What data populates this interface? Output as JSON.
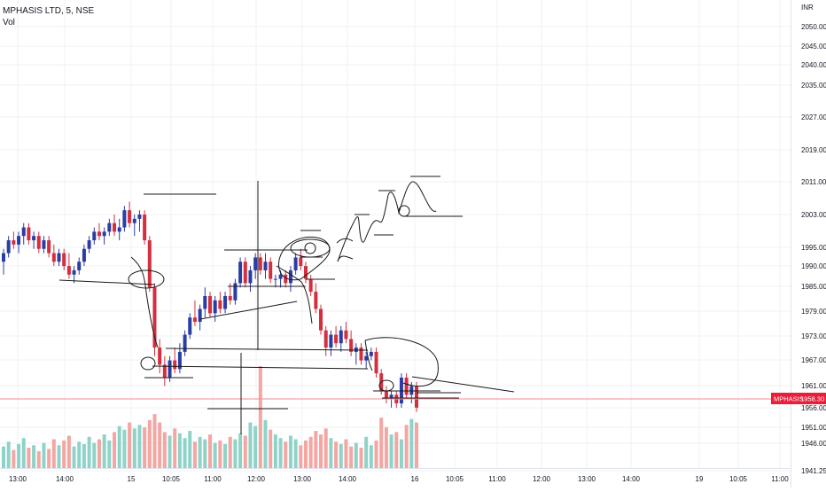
{
  "legend": {
    "symbol": "MPHASIS LTD, 5, NSE",
    "volume_label": "Vol"
  },
  "price_badge": {
    "symbol": "MPHASIS",
    "price": "1958.30"
  },
  "colors": {
    "up": "#2a3da5",
    "down": "#d32f3f",
    "vol_up": "#8fd3c8",
    "vol_down": "#f4a6a3",
    "price_line": "#f28b94",
    "badge": "#e91e3a",
    "grid": "#eef0f3",
    "drawing": "#1a1a1a"
  },
  "chart_data": {
    "type": "candlestick",
    "symbol": "MPHASIS LTD",
    "interval": "5",
    "exchange": "NSE",
    "currency": "INR",
    "last_price": 1958.3,
    "y_axis": {
      "unit": "INR",
      "ticks": [
        "2050.00",
        "2045.00",
        "2040.00",
        "2035.00",
        "2027.00",
        "2019.00",
        "2011.00",
        "2003.00",
        "1995.00",
        "1990.00",
        "1985.00",
        "1979.00",
        "1973.00",
        "1967.00",
        "1961.00",
        "1956.00",
        "1951.00",
        "1946.00",
        "1941.25"
      ]
    },
    "x_axis": {
      "ticks": [
        "13:00",
        "14:00",
        "15",
        "10:05",
        "11:00",
        "12:00",
        "13:00",
        "14:00",
        "16",
        "10:05",
        "11:00",
        "12:00",
        "13:00",
        "14:00",
        "19",
        "10:05",
        "11:00"
      ]
    },
    "candles": [
      {
        "o": 1992,
        "h": 1995,
        "l": 1989,
        "c": 1994
      },
      {
        "o": 1994,
        "h": 1998,
        "l": 1993,
        "c": 1997
      },
      {
        "o": 1997,
        "h": 1999,
        "l": 1995,
        "c": 1996
      },
      {
        "o": 1996,
        "h": 1999,
        "l": 1994,
        "c": 1998
      },
      {
        "o": 1998,
        "h": 2001,
        "l": 1996,
        "c": 2000
      },
      {
        "o": 2000,
        "h": 2001,
        "l": 1996,
        "c": 1997
      },
      {
        "o": 1997,
        "h": 1999,
        "l": 1995,
        "c": 1998
      },
      {
        "o": 1998,
        "h": 1999,
        "l": 1994,
        "c": 1995
      },
      {
        "o": 1995,
        "h": 1998,
        "l": 1994,
        "c": 1997
      },
      {
        "o": 1997,
        "h": 1998,
        "l": 1993,
        "c": 1994
      },
      {
        "o": 1994,
        "h": 1996,
        "l": 1991,
        "c": 1992
      },
      {
        "o": 1992,
        "h": 1995,
        "l": 1991,
        "c": 1994
      },
      {
        "o": 1994,
        "h": 1995,
        "l": 1990,
        "c": 1991
      },
      {
        "o": 1991,
        "h": 1994,
        "l": 1988,
        "c": 1989
      },
      {
        "o": 1989,
        "h": 1991,
        "l": 1987,
        "c": 1990
      },
      {
        "o": 1990,
        "h": 1993,
        "l": 1989,
        "c": 1992
      },
      {
        "o": 1992,
        "h": 1996,
        "l": 1991,
        "c": 1995
      },
      {
        "o": 1995,
        "h": 1998,
        "l": 1994,
        "c": 1997
      },
      {
        "o": 1997,
        "h": 2000,
        "l": 1996,
        "c": 1999
      },
      {
        "o": 1999,
        "h": 2001,
        "l": 1997,
        "c": 1998
      },
      {
        "o": 1998,
        "h": 2000,
        "l": 1996,
        "c": 1999
      },
      {
        "o": 1999,
        "h": 2002,
        "l": 1998,
        "c": 2001
      },
      {
        "o": 2001,
        "h": 2003,
        "l": 1998,
        "c": 1999
      },
      {
        "o": 1999,
        "h": 2002,
        "l": 1997,
        "c": 2000
      },
      {
        "o": 2000,
        "h": 2005,
        "l": 1999,
        "c": 2004
      },
      {
        "o": 2004,
        "h": 2006,
        "l": 2000,
        "c": 2001
      },
      {
        "o": 2001,
        "h": 2003,
        "l": 1998,
        "c": 2002
      },
      {
        "o": 2002,
        "h": 2004,
        "l": 1999,
        "c": 2003
      },
      {
        "o": 2003,
        "h": 2004,
        "l": 1996,
        "c": 1997
      },
      {
        "o": 1997,
        "h": 1998,
        "l": 1985,
        "c": 1986
      },
      {
        "o": 1986,
        "h": 1987,
        "l": 1970,
        "c": 1972
      },
      {
        "o": 1972,
        "h": 1974,
        "l": 1966,
        "c": 1968
      },
      {
        "o": 1968,
        "h": 1970,
        "l": 1963,
        "c": 1965
      },
      {
        "o": 1965,
        "h": 1970,
        "l": 1964,
        "c": 1969
      },
      {
        "o": 1969,
        "h": 1972,
        "l": 1966,
        "c": 1967
      },
      {
        "o": 1967,
        "h": 1973,
        "l": 1966,
        "c": 1971
      },
      {
        "o": 1971,
        "h": 1976,
        "l": 1970,
        "c": 1975
      },
      {
        "o": 1975,
        "h": 1980,
        "l": 1974,
        "c": 1979
      },
      {
        "o": 1979,
        "h": 1983,
        "l": 1977,
        "c": 1978
      },
      {
        "o": 1978,
        "h": 1982,
        "l": 1976,
        "c": 1981
      },
      {
        "o": 1981,
        "h": 1986,
        "l": 1979,
        "c": 1984
      },
      {
        "o": 1984,
        "h": 1985,
        "l": 1979,
        "c": 1980
      },
      {
        "o": 1980,
        "h": 1984,
        "l": 1978,
        "c": 1983
      },
      {
        "o": 1983,
        "h": 1985,
        "l": 1980,
        "c": 1981
      },
      {
        "o": 1981,
        "h": 1985,
        "l": 1980,
        "c": 1984
      },
      {
        "o": 1984,
        "h": 1987,
        "l": 1982,
        "c": 1983
      },
      {
        "o": 1983,
        "h": 1988,
        "l": 1982,
        "c": 1987
      },
      {
        "o": 1987,
        "h": 1993,
        "l": 1986,
        "c": 1992
      },
      {
        "o": 1992,
        "h": 1993,
        "l": 1986,
        "c": 1987
      },
      {
        "o": 1987,
        "h": 1991,
        "l": 1985,
        "c": 1990
      },
      {
        "o": 1990,
        "h": 1994,
        "l": 1988,
        "c": 1993
      },
      {
        "o": 1993,
        "h": 1994,
        "l": 1989,
        "c": 1990
      },
      {
        "o": 1990,
        "h": 1994,
        "l": 1988,
        "c": 1992
      },
      {
        "o": 1992,
        "h": 1993,
        "l": 1987,
        "c": 1988
      },
      {
        "o": 1988,
        "h": 1989,
        "l": 1986,
        "c": 1988
      },
      {
        "o": 1988,
        "h": 1990,
        "l": 1986,
        "c": 1989
      },
      {
        "o": 1989,
        "h": 1990,
        "l": 1986,
        "c": 1987
      },
      {
        "o": 1987,
        "h": 1991,
        "l": 1985,
        "c": 1990
      },
      {
        "o": 1990,
        "h": 1994,
        "l": 1989,
        "c": 1993
      },
      {
        "o": 1993,
        "h": 1995,
        "l": 1990,
        "c": 1991
      },
      {
        "o": 1991,
        "h": 1992,
        "l": 1987,
        "c": 1988
      },
      {
        "o": 1988,
        "h": 1989,
        "l": 1984,
        "c": 1985
      },
      {
        "o": 1985,
        "h": 1987,
        "l": 1980,
        "c": 1981
      },
      {
        "o": 1981,
        "h": 1982,
        "l": 1975,
        "c": 1976
      },
      {
        "o": 1976,
        "h": 1977,
        "l": 1970,
        "c": 1972
      },
      {
        "o": 1972,
        "h": 1976,
        "l": 1970,
        "c": 1975
      },
      {
        "o": 1975,
        "h": 1977,
        "l": 1972,
        "c": 1973
      },
      {
        "o": 1973,
        "h": 1977,
        "l": 1971,
        "c": 1976
      },
      {
        "o": 1976,
        "h": 1978,
        "l": 1973,
        "c": 1974
      },
      {
        "o": 1974,
        "h": 1976,
        "l": 1970,
        "c": 1971
      },
      {
        "o": 1971,
        "h": 1973,
        "l": 1968,
        "c": 1972
      },
      {
        "o": 1972,
        "h": 1973,
        "l": 1968,
        "c": 1969
      },
      {
        "o": 1969,
        "h": 1971,
        "l": 1967,
        "c": 1970
      },
      {
        "o": 1970,
        "h": 1972,
        "l": 1969,
        "c": 1971
      },
      {
        "o": 1971,
        "h": 1972,
        "l": 1965,
        "c": 1966
      },
      {
        "o": 1966,
        "h": 1967,
        "l": 1961,
        "c": 1962
      },
      {
        "o": 1962,
        "h": 1963,
        "l": 1959,
        "c": 1960
      },
      {
        "o": 1960,
        "h": 1962,
        "l": 1958,
        "c": 1961
      },
      {
        "o": 1961,
        "h": 1962,
        "l": 1958,
        "c": 1959
      },
      {
        "o": 1959,
        "h": 1966,
        "l": 1958,
        "c": 1965
      },
      {
        "o": 1965,
        "h": 1966,
        "l": 1960,
        "c": 1961
      },
      {
        "o": 1961,
        "h": 1964,
        "l": 1959,
        "c": 1963
      },
      {
        "o": 1963,
        "h": 1964,
        "l": 1957,
        "c": 1958
      }
    ],
    "volume_bars": [
      18,
      22,
      15,
      20,
      25,
      17,
      19,
      14,
      21,
      16,
      24,
      19,
      23,
      27,
      18,
      22,
      20,
      26,
      21,
      24,
      28,
      23,
      30,
      35,
      32,
      38,
      33,
      36,
      34,
      40,
      45,
      38,
      30,
      27,
      33,
      29,
      25,
      31,
      22,
      26,
      24,
      28,
      21,
      23,
      20,
      26,
      24,
      29,
      27,
      38,
      35,
      85,
      40,
      32,
      28,
      25,
      22,
      27,
      24,
      19,
      23,
      26,
      31,
      28,
      33,
      25,
      22,
      20,
      24,
      18,
      21,
      17,
      26,
      19,
      23,
      42,
      34,
      28,
      30,
      24,
      36,
      41,
      38
    ],
    "price_line": 1958.3
  }
}
